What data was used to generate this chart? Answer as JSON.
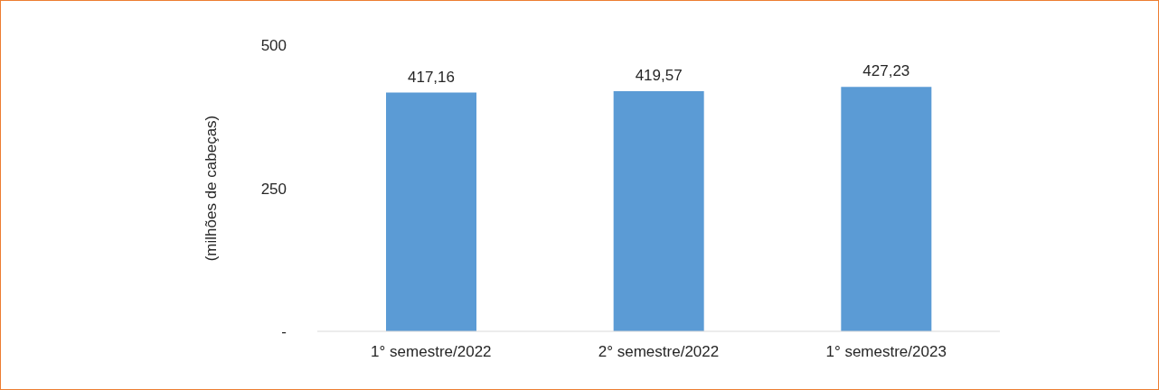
{
  "chart_data": {
    "type": "bar",
    "ylabel": "(milhões de cabeças)",
    "categories": [
      "1° semestre/2022",
      "2° semestre/2022",
      "1° semestre/2023"
    ],
    "values": [
      417.16,
      419.57,
      427.23
    ],
    "value_labels": [
      "417,16",
      "419,57",
      "427,23"
    ],
    "color": "#5b9bd5",
    "ylim": [
      0,
      500
    ],
    "yticks": [
      {
        "value": 0,
        "label": "-"
      },
      250,
      500
    ]
  }
}
